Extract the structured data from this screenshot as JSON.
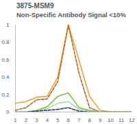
{
  "chart_data": {
    "type": "line",
    "title": "3875-MSM9",
    "subtitle": "Non-Specific Antibody Signal <10%",
    "x": [
      1,
      2,
      3,
      4,
      5,
      6,
      7,
      8,
      9,
      10,
      11,
      12
    ],
    "xlim": [
      1,
      12
    ],
    "xticks": [
      1,
      2,
      3,
      4,
      5,
      6,
      7,
      8,
      9,
      10,
      11,
      12
    ],
    "ylim": [
      0,
      1
    ],
    "yticks": [
      0,
      0.2,
      0.4,
      0.6,
      0.8,
      1
    ],
    "grid": false,
    "series": [
      {
        "color": "#f0a030",
        "line_style": "solid",
        "values": [
          0.1,
          0.12,
          0.17,
          0.18,
          0.4,
          1.0,
          0.6,
          0.18,
          0.02,
          0,
          0,
          0
        ]
      },
      {
        "color": "#b5651d",
        "line_style": "dashed",
        "values": [
          0.02,
          0.05,
          0.14,
          0.15,
          0.35,
          1.0,
          0.45,
          0.05,
          0,
          0,
          0,
          0
        ]
      },
      {
        "color": "#7cc242",
        "line_style": "solid",
        "values": [
          0,
          0,
          0.02,
          0.06,
          0.18,
          0.22,
          0.05,
          0.02,
          0,
          0,
          0,
          0
        ]
      },
      {
        "color": "#a8d08d",
        "line_style": "dashed",
        "values": [
          0,
          0,
          0.01,
          0.04,
          0.1,
          0.12,
          0.03,
          0.01,
          0,
          0,
          0,
          0
        ]
      },
      {
        "color": "#1f3864",
        "line_style": "dashed",
        "values": [
          0,
          0,
          0.01,
          0.02,
          0.03,
          0.05,
          0.01,
          0,
          0,
          0,
          0,
          0
        ]
      }
    ]
  }
}
